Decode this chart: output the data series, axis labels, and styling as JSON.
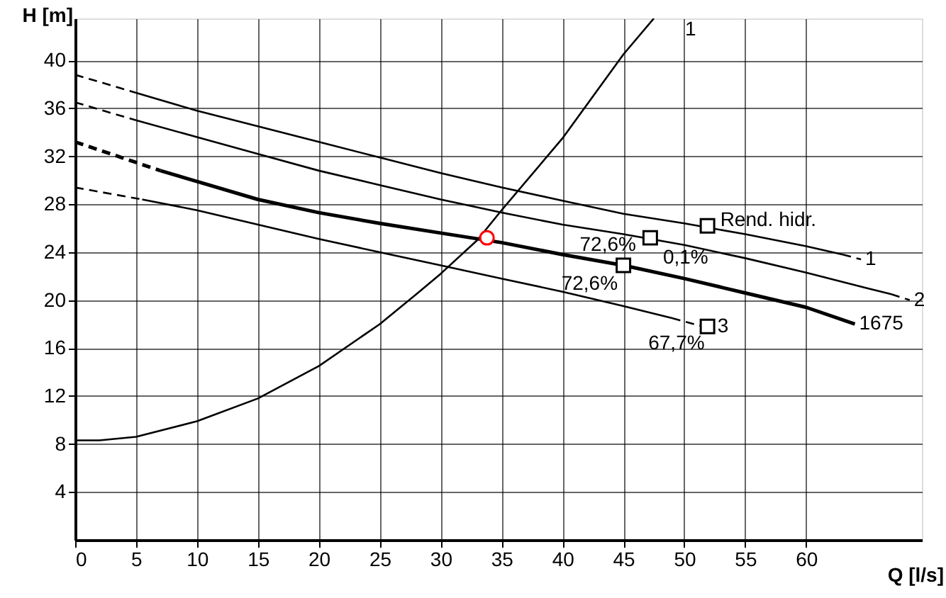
{
  "chart_data": {
    "type": "line",
    "xlabel": "Q [l/s]",
    "ylabel": "H [m]",
    "xlim": [
      0,
      69.5
    ],
    "ylim": [
      0,
      43.5
    ],
    "xticks": [
      0,
      5,
      10,
      15,
      20,
      25,
      30,
      35,
      40,
      45,
      50,
      55,
      60
    ],
    "yticks": [
      4,
      8,
      12,
      16,
      20,
      24,
      28,
      32,
      36,
      40
    ],
    "grid": true,
    "series": [
      {
        "type": "line",
        "color": "#000000",
        "line_style": "solid",
        "x": [
          0,
          2,
          5,
          10,
          15,
          20,
          25,
          28,
          30,
          33,
          35,
          40,
          45,
          47.5
        ],
        "values": [
          8.3,
          8.3,
          8.6,
          9.9,
          11.8,
          14.5,
          18,
          20.5,
          22.2,
          25,
          27.5,
          33.5,
          40.5,
          43.5
        ]
      },
      {
        "type": "line",
        "color": "#000000",
        "line_style": "dashed",
        "x": [
          0,
          5
        ],
        "values": [
          38.8,
          37.3
        ]
      },
      {
        "type": "line",
        "color": "#000000",
        "line_style": "solid",
        "x": [
          5,
          10,
          15,
          20,
          25,
          30,
          35,
          40,
          45,
          50,
          55,
          60,
          63
        ],
        "values": [
          37.3,
          35.8,
          34.5,
          33.2,
          31.9,
          30.6,
          29.4,
          28.3,
          27.2,
          26.4,
          25.5,
          24.5,
          23.8
        ]
      },
      {
        "type": "line",
        "color": "#000000",
        "line_style": "dashed",
        "x": [
          63,
          64.5
        ],
        "values": [
          23.8,
          23.4
        ]
      },
      {
        "type": "line",
        "color": "#000000",
        "line_style": "dashed",
        "x": [
          0,
          5
        ],
        "values": [
          36.5,
          35
        ]
      },
      {
        "type": "line",
        "color": "#000000",
        "line_style": "solid",
        "x": [
          5,
          10,
          15,
          20,
          25,
          30,
          35,
          40,
          45,
          50,
          55,
          60,
          65,
          67
        ],
        "values": [
          35,
          33.6,
          32.2,
          30.8,
          29.6,
          28.4,
          27.3,
          26.3,
          25.5,
          24.6,
          23.5,
          22.3,
          21,
          20.5
        ]
      },
      {
        "type": "line",
        "color": "#000000",
        "line_style": "dashed",
        "x": [
          67,
          68.5
        ],
        "values": [
          20.5,
          20
        ]
      },
      {
        "type": "line",
        "color": "#000000",
        "line_style": "dashed",
        "x": [
          0,
          7
        ],
        "values": [
          33.2,
          30.8
        ]
      },
      {
        "type": "line",
        "color": "#000000",
        "line_style": "solid",
        "x": [
          7,
          10,
          15,
          20,
          25,
          30,
          35,
          40,
          45,
          50,
          55,
          60,
          64
        ],
        "values": [
          30.8,
          29.9,
          28.4,
          27.3,
          26.4,
          25.6,
          24.8,
          23.8,
          22.9,
          21.8,
          20.6,
          19.4,
          18
        ]
      },
      {
        "type": "line",
        "color": "#000000",
        "line_style": "dashed",
        "x": [
          0,
          5.5
        ],
        "values": [
          29.4,
          28.4
        ]
      },
      {
        "type": "line",
        "color": "#000000",
        "line_style": "solid",
        "x": [
          5.5,
          10,
          15,
          20,
          25,
          30,
          35,
          40,
          45,
          49
        ],
        "values": [
          28.4,
          27.5,
          26.3,
          25.1,
          24,
          22.9,
          21.8,
          20.7,
          19.5,
          18.5
        ]
      },
      {
        "type": "line",
        "color": "#000000",
        "line_style": "dashed",
        "x": [
          49,
          51.5
        ],
        "values": [
          18.5,
          17.8
        ]
      },
      {
        "type": "scatter",
        "color": "#000000",
        "marker": "square",
        "x": [
          51.9,
          47.2,
          45,
          51.9
        ],
        "values": [
          26.2,
          25.2,
          22.9,
          17.8
        ]
      },
      {
        "type": "scatter",
        "color": "#ff0000",
        "marker": "circle",
        "x": [
          33.8
        ],
        "values": [
          25.2
        ]
      }
    ],
    "annotations": [
      {
        "text": "Rend. hidr.",
        "x": 51.9,
        "y": 26.2
      },
      {
        "text": "0,1%",
        "x": 47.2,
        "y": 25.2
      },
      {
        "text": "72,6%",
        "x": 47.2,
        "y": 25.2
      },
      {
        "text": "72,6%",
        "x": 45,
        "y": 22.9
      },
      {
        "text": "67,7%",
        "x": 51.9,
        "y": 17.8
      },
      {
        "text": "1",
        "x": 64.5,
        "y": 23.4
      },
      {
        "text": "2",
        "x": 68.5,
        "y": 20
      },
      {
        "text": "1675",
        "x": 64,
        "y": 18
      },
      {
        "text": "3",
        "x": 51.9,
        "y": 17.8
      },
      {
        "text": "1",
        "x": 47.5,
        "y": 43.5
      }
    ]
  }
}
